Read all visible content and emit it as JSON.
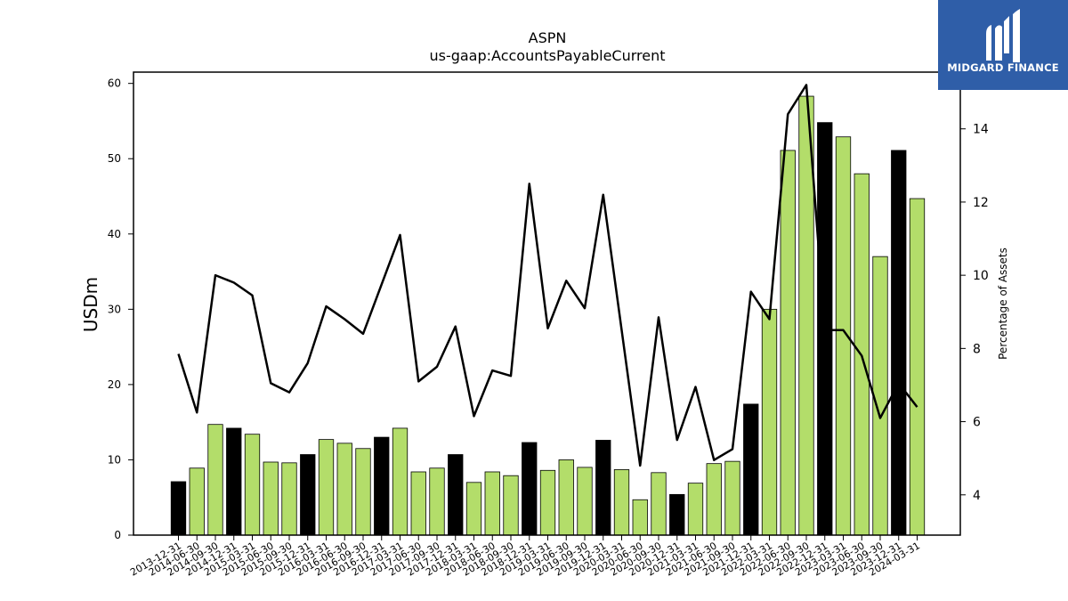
{
  "brand": {
    "name": "MIDGARD FINANCE",
    "bg_color": "#2f5ea8",
    "icon": "midgard-logo-icon"
  },
  "chart_data": {
    "type": "bar",
    "title": "ASPN",
    "subtitle": "us-gaap:AccountsPayableCurrent",
    "ylabel_left": "USDm",
    "ylabel_right": "Percentage of Assets",
    "ylim_left": [
      0,
      61.5
    ],
    "ylim_right": [
      2.9,
      15.55
    ],
    "yticks_left": [
      0,
      10,
      20,
      30,
      40,
      50,
      60
    ],
    "yticks_right": [
      4,
      6,
      8,
      10,
      12,
      14
    ],
    "grid": false,
    "categories": [
      "2013-12-31",
      "2014-06-30",
      "2014-09-30",
      "2014-12-31",
      "2015-03-31",
      "2015-06-30",
      "2015-09-30",
      "2015-12-31",
      "2016-03-31",
      "2016-06-30",
      "2016-09-30",
      "2016-12-31",
      "2017-03-31",
      "2017-06-30",
      "2017-09-30",
      "2017-12-31",
      "2018-03-31",
      "2018-06-30",
      "2018-09-30",
      "2018-12-31",
      "2019-03-31",
      "2019-06-30",
      "2019-09-30",
      "2019-12-31",
      "2020-03-31",
      "2020-06-30",
      "2020-09-30",
      "2020-12-31",
      "2021-03-31",
      "2021-06-30",
      "2021-09-30",
      "2021-12-31",
      "2022-03-31",
      "2022-06-30",
      "2022-09-30",
      "2022-12-31",
      "2023-03-31",
      "2023-06-30",
      "2023-09-30",
      "2023-12-31",
      "2024-03-31"
    ],
    "series": [
      {
        "kind": "bar",
        "axis": "left",
        "values": [
          7.1,
          8.9,
          14.7,
          14.2,
          13.4,
          9.7,
          9.6,
          10.7,
          12.7,
          12.2,
          11.5,
          13.0,
          14.2,
          8.4,
          8.9,
          10.7,
          7.0,
          8.4,
          7.9,
          12.3,
          8.6,
          10.0,
          9.0,
          12.6,
          8.7,
          4.7,
          8.3,
          5.4,
          6.9,
          9.5,
          9.8,
          17.4,
          30.0,
          51.1,
          58.3,
          54.8,
          52.9,
          48.0,
          37.0,
          51.1,
          44.7
        ],
        "highlight": [
          true,
          false,
          false,
          true,
          false,
          false,
          false,
          true,
          false,
          false,
          false,
          true,
          false,
          false,
          false,
          true,
          false,
          false,
          false,
          true,
          false,
          false,
          false,
          true,
          false,
          false,
          false,
          true,
          false,
          false,
          false,
          true,
          false,
          false,
          false,
          true,
          false,
          false,
          false,
          true,
          false
        ],
        "color": "#b3dd6a",
        "highlight_color": "#000000"
      },
      {
        "kind": "line",
        "axis": "right",
        "color": "#000000",
        "values": [
          7.85,
          6.25,
          10.0,
          9.8,
          9.45,
          7.05,
          6.8,
          7.6,
          9.15,
          8.8,
          8.4,
          9.75,
          11.1,
          7.1,
          7.5,
          8.6,
          6.15,
          7.4,
          7.25,
          12.5,
          8.55,
          9.85,
          9.1,
          12.2,
          8.5,
          4.8,
          8.85,
          5.5,
          6.95,
          4.95,
          5.25,
          9.55,
          8.8,
          14.4,
          15.2,
          8.5,
          8.5,
          7.8,
          6.1,
          7.05,
          6.4
        ]
      }
    ]
  }
}
